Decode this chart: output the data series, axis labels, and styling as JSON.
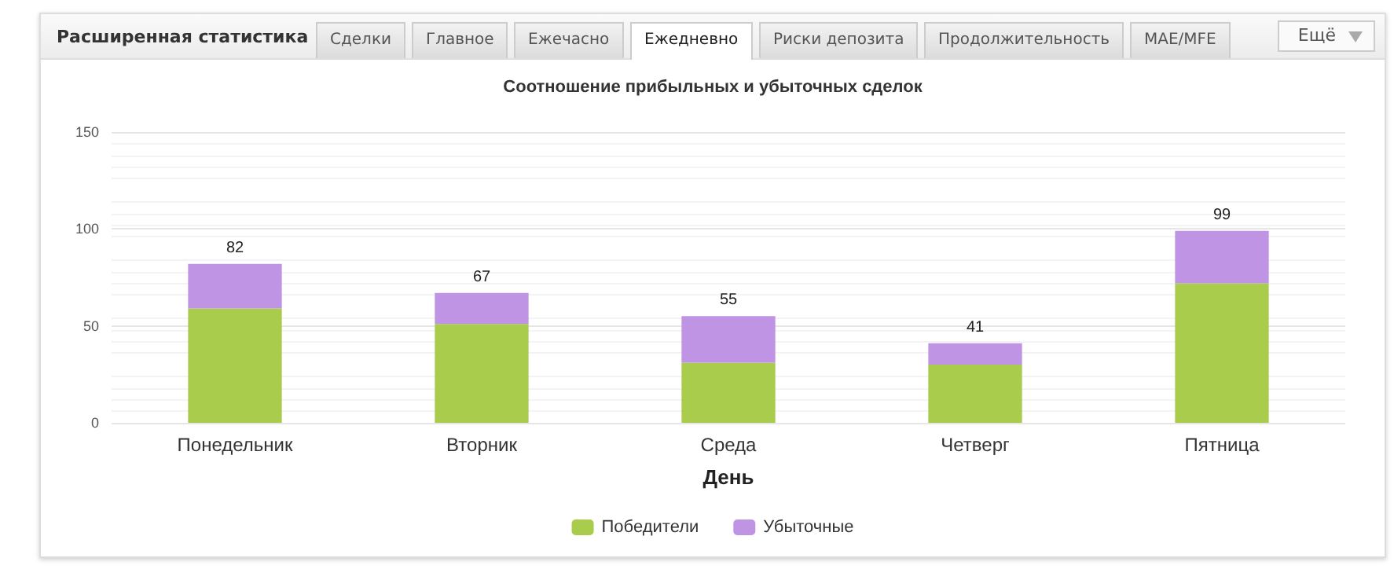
{
  "chart_data": {
    "type": "bar",
    "title": "Соотношение прибыльных и убыточных сделок",
    "xlabel": "День",
    "annotations": [
      "Расширенная статистика",
      "Сделки",
      "Главное",
      "Ежечасно",
      "Ежедневно",
      "Риски депозита",
      "Продолжительность",
      "MAE/MFE",
      "Ещё"
    ],
    "categories": [
      "Понедельник",
      "Вторник",
      "Среда",
      "Четверг",
      "Пятница"
    ],
    "series": [
      {
        "name": "Победители",
        "color": "#a9cc4c",
        "values": [
          59,
          51,
          31,
          30,
          72
        ]
      },
      {
        "name": "Убыточные",
        "color": "#bf94e4",
        "values": [
          23,
          16,
          24,
          11,
          27
        ]
      }
    ],
    "stacked": true,
    "totals": [
      "82",
      "67",
      "55",
      "41",
      "99"
    ],
    "ylim": [
      0,
      150
    ],
    "yticks": [
      0,
      50,
      100,
      150
    ],
    "grid": "y",
    "legend": "bottom"
  }
}
